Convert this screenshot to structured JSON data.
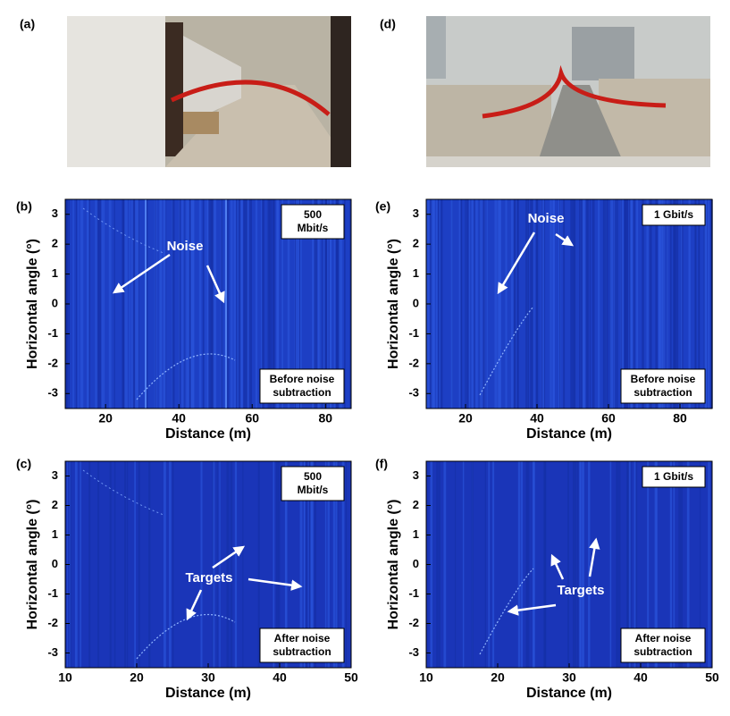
{
  "photos": [
    {
      "label": "(a)"
    },
    {
      "label": "(d)"
    }
  ],
  "chart_data": [
    {
      "type": "heatmap",
      "label": "(b)",
      "xlabel": "Distance (m)",
      "ylabel": "Horizontal angle (°)",
      "xlim": [
        9,
        87
      ],
      "xticks": [
        20,
        40,
        60,
        80
      ],
      "ylim": [
        -3.5,
        3.5
      ],
      "yticks": [
        -3,
        -2,
        -1,
        0,
        1,
        2,
        3
      ],
      "rate_label": [
        "500",
        "Mbit/s"
      ],
      "stage_label": [
        "Before noise",
        "subtraction"
      ],
      "annotation": "Noise"
    },
    {
      "type": "heatmap",
      "label": "(e)",
      "xlabel": "Distance (m)",
      "ylabel": "Horizontal angle (°)",
      "xlim": [
        9,
        89
      ],
      "xticks": [
        20,
        40,
        60,
        80
      ],
      "ylim": [
        -3.5,
        3.5
      ],
      "yticks": [
        -3,
        -2,
        -1,
        0,
        1,
        2,
        3
      ],
      "rate_label": [
        "1 Gbit/s"
      ],
      "stage_label": [
        "Before noise",
        "subtraction"
      ],
      "annotation": "Noise"
    },
    {
      "type": "heatmap",
      "label": "(c)",
      "xlabel": "Distance (m)",
      "ylabel": "Horizontal angle (°)",
      "xlim": [
        10,
        50
      ],
      "xticks": [
        10,
        20,
        30,
        40,
        50
      ],
      "ylim": [
        -3.5,
        3.5
      ],
      "yticks": [
        -3,
        -2,
        -1,
        0,
        1,
        2,
        3
      ],
      "rate_label": [
        "500",
        "Mbit/s"
      ],
      "stage_label": [
        "After noise",
        "subtraction"
      ],
      "annotation": "Targets"
    },
    {
      "type": "heatmap",
      "label": "(f)",
      "xlabel": "Distance (m)",
      "ylabel": "Horizontal angle (°)",
      "xlim": [
        10,
        50
      ],
      "xticks": [
        10,
        20,
        30,
        40,
        50
      ],
      "ylim": [
        -3.5,
        3.5
      ],
      "yticks": [
        -3,
        -2,
        -1,
        0,
        1,
        2,
        3
      ],
      "rate_label": [
        "1 Gbit/s"
      ],
      "stage_label": [
        "After noise",
        "subtraction"
      ],
      "annotation": "Targets"
    }
  ]
}
